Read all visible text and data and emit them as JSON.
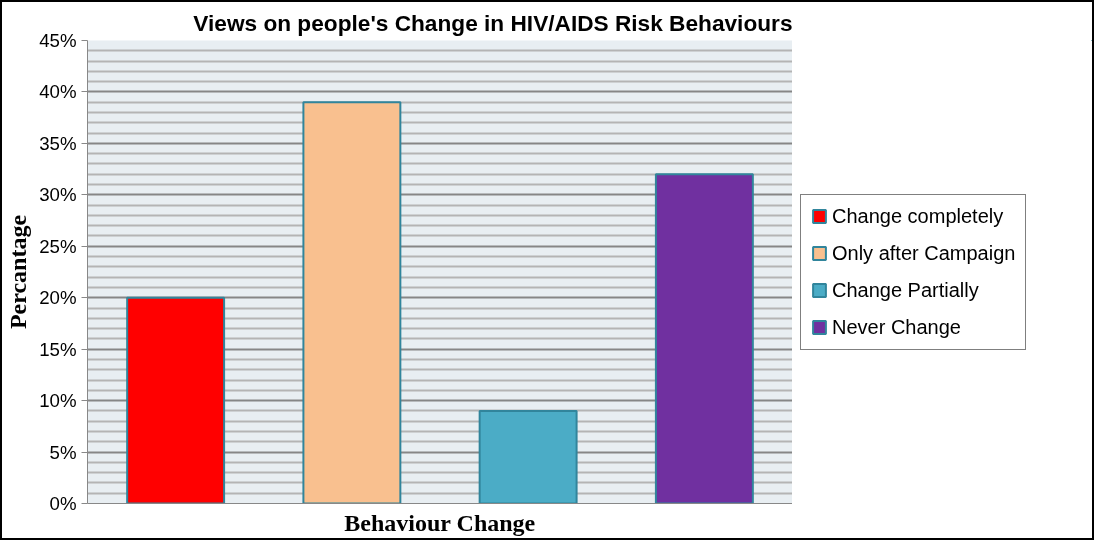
{
  "chart_data": {
    "type": "bar",
    "title": "Views on people's Change in HIV/AIDS Risk Behaviours",
    "xlabel": "Behaviour Change",
    "ylabel": "Percantage",
    "categories": [
      null
    ],
    "series": [
      {
        "name": "Change completely",
        "color": "#ff0000",
        "values": [
          20
        ]
      },
      {
        "name": "Only after Campaign",
        "color": "#f9c08f",
        "values": [
          39
        ]
      },
      {
        "name": "Change Partially",
        "color": "#4bacc6",
        "values": [
          9
        ]
      },
      {
        "name": "Never Change",
        "color": "#7030a0",
        "values": [
          32
        ]
      }
    ],
    "ylim": [
      0,
      45
    ],
    "yticks": [
      {
        "value": 0,
        "label": "0%"
      },
      {
        "value": 5,
        "label": "5%"
      },
      {
        "value": 10,
        "label": "10%"
      },
      {
        "value": 15,
        "label": "15%"
      },
      {
        "value": 20,
        "label": "20%"
      },
      {
        "value": 25,
        "label": "25%"
      },
      {
        "value": 30,
        "label": "30%"
      },
      {
        "value": 35,
        "label": "35%"
      },
      {
        "value": 40,
        "label": "40%"
      },
      {
        "value": 45,
        "label": "45%"
      }
    ],
    "grid": "y",
    "legend": "right",
    "tick_labels": "y"
  }
}
